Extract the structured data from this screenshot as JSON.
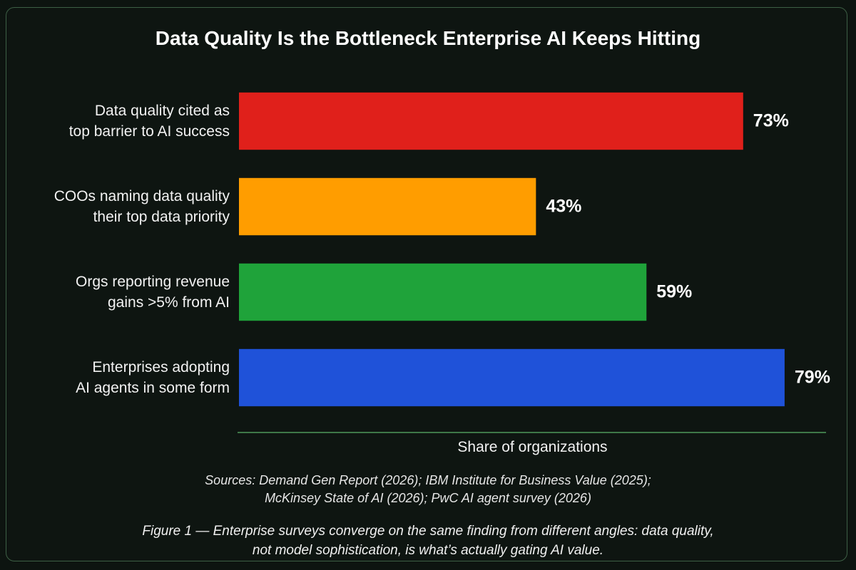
{
  "chart_data": {
    "type": "bar",
    "orientation": "horizontal",
    "title": "Data Quality Is the Bottleneck Enterprise AI Keeps Hitting",
    "categories": [
      "Data quality cited as\ntop barrier to AI success",
      "COOs naming data quality\ntheir top data priority",
      "Orgs reporting revenue\ngains >5% from AI",
      "Enterprises adopting\nAI agents in some form"
    ],
    "values": [
      73,
      43,
      59,
      79
    ],
    "value_labels": [
      "73%",
      "43%",
      "59%",
      "79%"
    ],
    "colors": [
      "#e0201b",
      "#ff9d00",
      "#1fa33a",
      "#1f52d9"
    ],
    "xlim": [
      0,
      85
    ],
    "xlabel": "Share of organizations",
    "sources": "Sources: Demand Gen Report (2026); IBM Institute for Business Value (2025);\nMcKinsey State of AI (2026); PwC AI agent survey (2026)",
    "caption": "Figure 1 — Enterprise surveys converge on the same finding from different angles: data quality,\nnot model sophistication, is what’s actually gating AI value."
  }
}
